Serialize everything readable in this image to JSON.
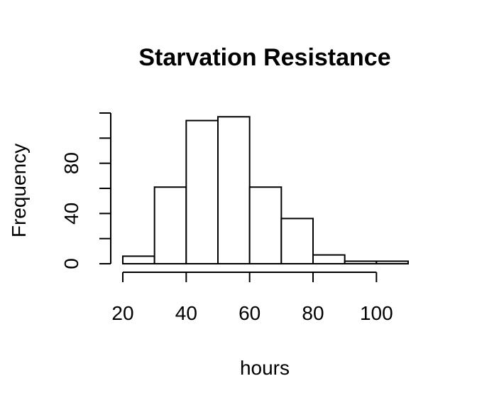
{
  "chart_data": {
    "type": "bar",
    "title": "Starvation Resistance",
    "xlabel": "hours",
    "ylabel": "Frequency",
    "bin_edges": [
      20,
      30,
      40,
      50,
      60,
      70,
      80,
      90,
      100,
      110
    ],
    "values": [
      6,
      61,
      114,
      117,
      61,
      36,
      7,
      2,
      2
    ],
    "xlim": [
      20,
      110
    ],
    "ylim": [
      0,
      120
    ],
    "x_ticks": [
      20,
      40,
      60,
      80,
      100
    ],
    "x_tick_labels": [
      "20",
      "40",
      "60",
      "80",
      "100"
    ],
    "y_ticks": [
      0,
      20,
      40,
      60,
      80,
      100,
      120
    ],
    "y_tick_labels": [
      "0",
      "",
      "40",
      "",
      "80",
      "",
      ""
    ],
    "grid": false,
    "colors": {
      "bar_fill": "#ffffff",
      "bar_stroke": "#000000"
    }
  }
}
